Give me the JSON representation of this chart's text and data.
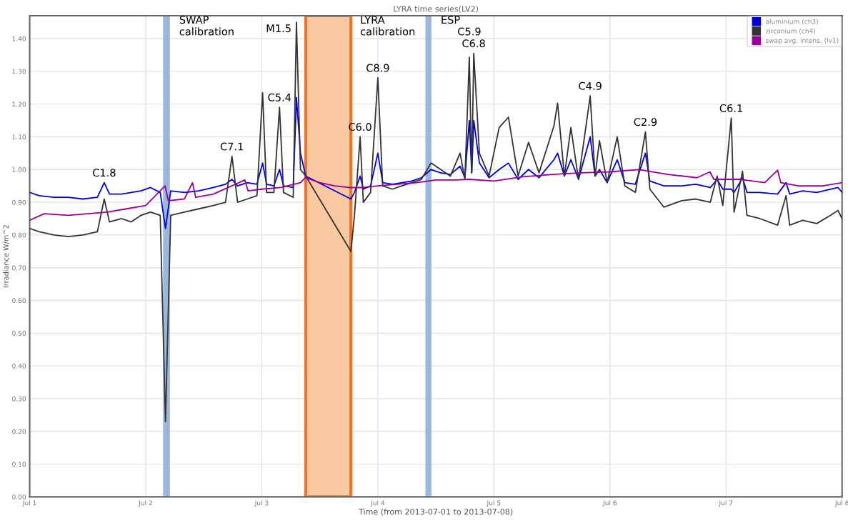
{
  "chart_data": {
    "type": "line",
    "title": "LYRA time series(LV2)",
    "xlabel": "Time (from 2013-07-01 to 2013-07-08)",
    "ylabel": "Irradiance W/m^2",
    "xlim": [
      "2013-07-01",
      "2013-07-08"
    ],
    "xticks": [
      {
        "value": "2013-07-01",
        "label": "Jul 1"
      },
      {
        "value": "2013-07-02",
        "label": "Jul 2"
      },
      {
        "value": "2013-07-03",
        "label": "Jul 3"
      },
      {
        "value": "2013-07-04",
        "label": "Jul 4"
      },
      {
        "value": "2013-07-05",
        "label": "Jul 5"
      },
      {
        "value": "2013-07-06",
        "label": "Jul 6"
      },
      {
        "value": "2013-07-07",
        "label": "Jul 7"
      },
      {
        "value": "2013-07-08",
        "label": "Jul 8"
      }
    ],
    "ylim": [
      0,
      1.47
    ],
    "yticks": [
      {
        "value": 0,
        "label": "0.00"
      },
      {
        "value": 0.1,
        "label": "0.10"
      },
      {
        "value": 0.2,
        "label": "0.20"
      },
      {
        "value": 0.3,
        "label": "0.30"
      },
      {
        "value": 0.4,
        "label": "0.40"
      },
      {
        "value": 0.5,
        "label": "0.50"
      },
      {
        "value": 0.6,
        "label": "0.60"
      },
      {
        "value": 0.7,
        "label": "0.70"
      },
      {
        "value": 0.8,
        "label": "0.80"
      },
      {
        "value": 0.9,
        "label": "0.90"
      },
      {
        "value": 1.0,
        "label": "1.00"
      },
      {
        "value": 1.1,
        "label": "1.10"
      },
      {
        "value": 1.2,
        "label": "1.20"
      },
      {
        "value": 1.3,
        "label": "1.30"
      },
      {
        "value": 1.4,
        "label": "1.40"
      }
    ],
    "grid": true,
    "legend": "top right",
    "marker": "none",
    "line_style": "solid",
    "x": [
      "2013-07-01T00:00",
      "2013-07-01T02:00",
      "2013-07-01T05:00",
      "2013-07-01T08:00",
      "2013-07-01T11:00",
      "2013-07-01T14:00",
      "2013-07-01T15:25",
      "2013-07-01T16:30",
      "2013-07-01T19:00",
      "2013-07-01T21:00",
      "2013-07-01T23:00",
      "2013-07-02T01:00",
      "2013-07-02T03:00",
      "2013-07-02T04:05",
      "2013-07-02T05:10",
      "2013-07-02T08:00",
      "2013-07-02T11:00",
      "2013-07-02T14:00",
      "2013-07-02T16:30",
      "2013-07-02T17:50",
      "2013-07-02T19:00",
      "2013-07-02T21:00",
      "2013-07-02T23:00",
      "2013-07-03T00:10",
      "2013-07-03T01:00",
      "2013-07-03T02:30",
      "2013-07-03T03:40",
      "2013-07-03T04:30",
      "2013-07-03T06:30",
      "2013-07-03T07:10",
      "2013-07-03T08:00",
      "2013-07-03T09:05",
      "2013-07-03T18:25",
      "2013-07-03T19:10",
      "2013-07-03T20:20",
      "2013-07-03T21:00",
      "2013-07-03T22:30",
      "2013-07-04T00:00",
      "2013-07-04T01:00",
      "2013-07-04T03:00",
      "2013-07-04T05:00",
      "2013-07-04T07:00",
      "2013-07-04T09:00",
      "2013-07-04T11:00",
      "2013-07-04T13:00",
      "2013-07-04T15:00",
      "2013-07-04T17:00",
      "2013-07-04T18:00",
      "2013-07-04T18:55",
      "2013-07-04T19:25",
      "2013-07-04T19:50",
      "2013-07-04T21:00",
      "2013-07-04T23:00",
      "2013-07-05T01:05",
      "2013-07-05T03:00",
      "2013-07-05T05:00",
      "2013-07-05T07:10",
      "2013-07-05T09:20",
      "2013-07-05T12:25",
      "2013-07-05T13:10",
      "2013-07-05T14:35",
      "2013-07-05T15:55",
      "2013-07-05T17:30",
      "2013-07-05T19:55",
      "2013-07-05T20:55",
      "2013-07-05T21:50",
      "2013-07-05T23:25",
      "2013-07-06T01:30",
      "2013-07-06T03:05",
      "2013-07-06T05:15",
      "2013-07-06T07:20",
      "2013-07-06T08:15",
      "2013-07-06T11:10",
      "2013-07-06T14:50",
      "2013-07-06T17:45",
      "2013-07-06T20:45",
      "2013-07-06T22:10",
      "2013-07-06T23:20",
      "2013-07-07T01:05",
      "2013-07-07T01:40",
      "2013-07-07T03:25",
      "2013-07-07T04:20",
      "2013-07-07T07:00",
      "2013-07-07T10:40",
      "2013-07-07T12:25",
      "2013-07-07T13:10",
      "2013-07-07T15:50",
      "2013-07-07T18:45",
      "2013-07-07T21:35",
      "2013-07-07T23:10",
      "2013-07-08T00:00"
    ],
    "series": [
      {
        "name": "aluminium (ch3)",
        "color": "#0000dd",
        "values": [
          0.93,
          0.92,
          0.915,
          0.915,
          0.91,
          0.915,
          0.96,
          0.925,
          0.925,
          0.93,
          0.935,
          0.945,
          0.93,
          0.82,
          0.935,
          0.93,
          0.935,
          0.945,
          0.955,
          0.97,
          0.95,
          0.96,
          0.955,
          1.02,
          0.955,
          0.95,
          1.0,
          0.95,
          0.945,
          1.22,
          1.05,
          0.98,
          0.91,
          0.93,
          0.98,
          0.94,
          0.95,
          1.05,
          0.96,
          0.955,
          0.96,
          0.965,
          0.975,
          1.0,
          0.99,
          0.985,
          1.01,
          0.975,
          1.15,
          0.99,
          1.15,
          1.02,
          0.975,
          1.0,
          1.02,
          0.97,
          1.0,
          0.975,
          1.03,
          1.05,
          0.98,
          1.03,
          0.97,
          1.1,
          0.98,
          1.0,
          0.96,
          1.03,
          0.96,
          0.955,
          1.05,
          0.965,
          0.95,
          0.95,
          0.955,
          0.945,
          0.97,
          0.94,
          0.94,
          0.93,
          0.975,
          0.93,
          0.93,
          0.925,
          0.96,
          0.925,
          0.935,
          0.93,
          0.94,
          0.945,
          0.93
        ]
      },
      {
        "name": "zirconium (ch4)",
        "color": "#333333",
        "values": [
          0.82,
          0.81,
          0.8,
          0.795,
          0.8,
          0.81,
          0.91,
          0.84,
          0.85,
          0.84,
          0.86,
          0.87,
          0.86,
          0.23,
          0.86,
          0.87,
          0.88,
          0.89,
          0.9,
          1.04,
          0.9,
          0.91,
          0.92,
          1.235,
          0.93,
          0.93,
          1.19,
          0.93,
          0.915,
          1.45,
          1.0,
          0.98,
          0.75,
          0.86,
          1.1,
          0.9,
          0.93,
          1.28,
          0.95,
          0.94,
          0.95,
          0.96,
          0.97,
          1.02,
          1.0,
          0.98,
          1.05,
          0.97,
          1.343,
          0.99,
          1.355,
          1.05,
          0.98,
          1.128,
          1.16,
          0.98,
          1.083,
          0.99,
          1.133,
          1.203,
          0.98,
          1.128,
          0.97,
          1.225,
          0.98,
          1.088,
          0.96,
          1.1,
          0.95,
          0.93,
          1.115,
          0.94,
          0.885,
          0.905,
          0.91,
          0.9,
          0.98,
          0.89,
          1.157,
          0.87,
          0.995,
          0.86,
          0.85,
          0.83,
          0.92,
          0.83,
          0.845,
          0.835,
          0.86,
          0.875,
          0.85
        ]
      },
      {
        "name": "swap avg. intens. (lv1)",
        "color": "#990099",
        "x": [
          "2013-07-01T00:00",
          "2013-07-01T03:00",
          "2013-07-01T08:00",
          "2013-07-01T12:00",
          "2013-07-01T16:00",
          "2013-07-01T20:00",
          "2013-07-02T00:00",
          "2013-07-02T04:00",
          "2013-07-02T04:40",
          "2013-07-02T08:00",
          "2013-07-02T09:40",
          "2013-07-02T10:20",
          "2013-07-02T14:00",
          "2013-07-02T20:30",
          "2013-07-02T21:10",
          "2013-07-03T00:00",
          "2013-07-03T04:00",
          "2013-07-03T08:00",
          "2013-07-03T09:00",
          "2013-07-03T12:00",
          "2013-07-03T15:00",
          "2013-07-03T18:00",
          "2013-07-03T21:00",
          "2013-07-04T00:00",
          "2013-07-04T04:00",
          "2013-07-04T08:00",
          "2013-07-04T12:00",
          "2013-07-04T16:00",
          "2013-07-04T19:00",
          "2013-07-05T00:00",
          "2013-07-05T06:00",
          "2013-07-05T12:00",
          "2013-07-05T18:00",
          "2013-07-06T00:00",
          "2013-07-06T06:00",
          "2013-07-06T12:00",
          "2013-07-06T18:00",
          "2013-07-06T20:40",
          "2013-07-06T21:30",
          "2013-07-07T03:00",
          "2013-07-07T08:00",
          "2013-07-07T10:40",
          "2013-07-07T11:20",
          "2013-07-07T15:00",
          "2013-07-07T20:00",
          "2013-07-08T00:00"
        ],
        "values": [
          0.845,
          0.865,
          0.86,
          0.865,
          0.87,
          0.88,
          0.89,
          0.95,
          0.905,
          0.91,
          0.96,
          0.915,
          0.925,
          0.968,
          0.935,
          0.94,
          0.945,
          0.96,
          0.975,
          0.96,
          0.95,
          0.945,
          0.945,
          0.95,
          0.955,
          0.96,
          0.968,
          0.968,
          0.97,
          0.965,
          0.978,
          0.985,
          0.99,
          0.993,
          1.0,
          0.985,
          0.975,
          0.993,
          0.97,
          0.97,
          0.96,
          0.998,
          0.96,
          0.95,
          0.95,
          0.96
        ]
      }
    ],
    "bands": [
      {
        "axis": "x",
        "from": "2013-07-02T03:35",
        "to": "2013-07-02T05:00",
        "label": "SWAP\ncalibration",
        "color": "#9ab8dc"
      },
      {
        "axis": "x",
        "from": "2013-07-03T09:05",
        "to": "2013-07-03T18:25",
        "label": "LYRA\ncalibration",
        "color": "#f8c8a0"
      },
      {
        "axis": "x",
        "from": "2013-07-04T09:50",
        "to": "2013-07-04T11:05",
        "label": "ESP",
        "color": "#9ab8dc"
      }
    ],
    "annotations": [
      {
        "text": "C1.8",
        "x": "2013-07-01T15:25",
        "y": 0.96
      },
      {
        "text": "C7.1",
        "x": "2013-07-02T17:50",
        "y": 1.04
      },
      {
        "text": "C5.4",
        "x": "2013-07-03T03:40",
        "y": 1.19
      },
      {
        "text": "M1.5",
        "x": "2013-07-03T07:10",
        "y": 1.45
      },
      {
        "text": "C6.0",
        "x": "2013-07-03T20:20",
        "y": 1.1
      },
      {
        "text": "C8.9",
        "x": "2013-07-04T00:00",
        "y": 1.28
      },
      {
        "text": "C5.9",
        "x": "2013-07-04T18:55",
        "y": 1.343
      },
      {
        "text": "C6.8",
        "x": "2013-07-04T19:50",
        "y": 1.355
      },
      {
        "text": "C4.9",
        "x": "2013-07-05T19:55",
        "y": 1.225
      },
      {
        "text": "C2.9",
        "x": "2013-07-06T07:20",
        "y": 1.115
      },
      {
        "text": "C6.1",
        "x": "2013-07-07T01:05",
        "y": 1.157
      }
    ]
  }
}
